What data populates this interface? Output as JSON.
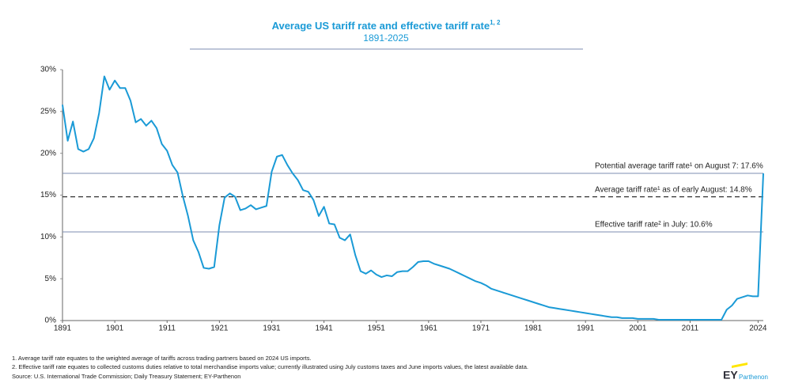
{
  "chart_data": {
    "type": "line",
    "title": "Average US tariff rate and effective tariff rate",
    "title_superscript": "1, 2",
    "subtitle": "1891-2025",
    "series": [
      {
        "name": "Average US tariff rate",
        "color": "#1a9ad6",
        "x": [
          1891,
          1892,
          1893,
          1894,
          1895,
          1896,
          1897,
          1898,
          1899,
          1900,
          1901,
          1902,
          1903,
          1904,
          1905,
          1906,
          1907,
          1908,
          1909,
          1910,
          1911,
          1912,
          1913,
          1914,
          1915,
          1916,
          1917,
          1918,
          1919,
          1920,
          1921,
          1922,
          1923,
          1924,
          1925,
          1926,
          1927,
          1928,
          1929,
          1930,
          1931,
          1932,
          1933,
          1934,
          1935,
          1936,
          1937,
          1938,
          1939,
          1940,
          1941,
          1942,
          1943,
          1944,
          1945,
          1946,
          1947,
          1948,
          1949,
          1950,
          1951,
          1952,
          1953,
          1954,
          1955,
          1956,
          1957,
          1958,
          1959,
          1960,
          1961,
          1962,
          1963,
          1964,
          1965,
          1966,
          1967,
          1968,
          1969,
          1970,
          1971,
          1972,
          1973,
          1974,
          1975,
          1976,
          1977,
          1978,
          1979,
          1980,
          1981,
          1982,
          1983,
          1984,
          1985,
          1986,
          1987,
          1988,
          1989,
          1990,
          1991,
          1992,
          1993,
          1994,
          1995,
          1996,
          1997,
          1998,
          1999,
          2000,
          2001,
          2002,
          2003,
          2004,
          2005,
          2010,
          2017,
          2018,
          2019,
          2020,
          2021,
          2022,
          2023,
          2024,
          2025
        ],
        "values": [
          25.8,
          21.5,
          23.8,
          20.5,
          20.2,
          20.5,
          21.8,
          24.8,
          29.2,
          27.6,
          28.7,
          27.8,
          27.8,
          26.3,
          23.7,
          24.1,
          23.3,
          23.9,
          23.0,
          21.1,
          20.3,
          18.6,
          17.7,
          14.9,
          12.5,
          9.6,
          8.2,
          6.3,
          6.2,
          6.4,
          11.4,
          14.7,
          15.2,
          14.8,
          13.2,
          13.4,
          13.8,
          13.3,
          13.5,
          13.7,
          17.8,
          19.6,
          19.8,
          18.6,
          17.6,
          16.8,
          15.6,
          15.4,
          14.4,
          12.5,
          13.6,
          11.6,
          11.5,
          9.9,
          9.6,
          10.3,
          7.8,
          5.9,
          5.6,
          6.0,
          5.5,
          5.2,
          5.4,
          5.3,
          5.8,
          5.9,
          5.9,
          6.4,
          7.0,
          7.1,
          7.1,
          6.8,
          6.6,
          6.4,
          6.2,
          5.9,
          5.6,
          5.3,
          5.0,
          4.7,
          4.5,
          4.2,
          3.8,
          3.6,
          3.4,
          3.2,
          3.0,
          2.8,
          2.6,
          2.4,
          2.2,
          2.0,
          1.8,
          1.6,
          1.5,
          1.4,
          1.3,
          1.2,
          1.1,
          1.0,
          0.9,
          0.8,
          0.7,
          0.6,
          0.5,
          0.4,
          0.4,
          0.3,
          0.3,
          0.3,
          0.2,
          0.2,
          0.2,
          0.2,
          0.1,
          0.1,
          0.1,
          1.3,
          1.8,
          2.6,
          2.8,
          3.0,
          2.9,
          2.9,
          17.6
        ]
      }
    ],
    "xlim": [
      1891,
      2025
    ],
    "xticks": [
      1891,
      1901,
      1911,
      1921,
      1931,
      1941,
      1951,
      1961,
      1971,
      1981,
      1991,
      2001,
      2011,
      2024
    ],
    "ylim": [
      0,
      30
    ],
    "yticks": [
      {
        "value": 0,
        "label": "0%"
      },
      {
        "value": 5,
        "label": "5%"
      },
      {
        "value": 10,
        "label": "10%"
      },
      {
        "value": 15,
        "label": "15%"
      },
      {
        "value": 20,
        "label": "20%"
      },
      {
        "value": 25,
        "label": "25%"
      },
      {
        "value": 30,
        "label": "30%"
      }
    ],
    "reference_lines": [
      {
        "value": 17.6,
        "label": "Potential average tariff rate¹ on August 7: 17.6%",
        "style": "solid",
        "color": "#7d8db0"
      },
      {
        "value": 14.8,
        "label": "Average tariff rate¹ as of early August: 14.8%",
        "style": "dashed",
        "color": "#333333"
      },
      {
        "value": 10.6,
        "label": "Effective tariff rate² in July: 10.6%",
        "style": "solid",
        "color": "#7d8db0"
      }
    ],
    "footnotes": [
      "1.   Average tariff rate equates to the weighted average of tariffs across trading partners based on 2024 US imports.",
      "2.   Effective tariff rate equates to collected customs duties relative to total merchandise imports value; currently illustrated using July customs taxes and June imports values, the latest available data."
    ],
    "source": "Source: U.S. International Trade Commission; Daily Treasury Statement; EY-Parthenon",
    "logo": {
      "brand": "EY",
      "name": "Parthenon"
    }
  }
}
